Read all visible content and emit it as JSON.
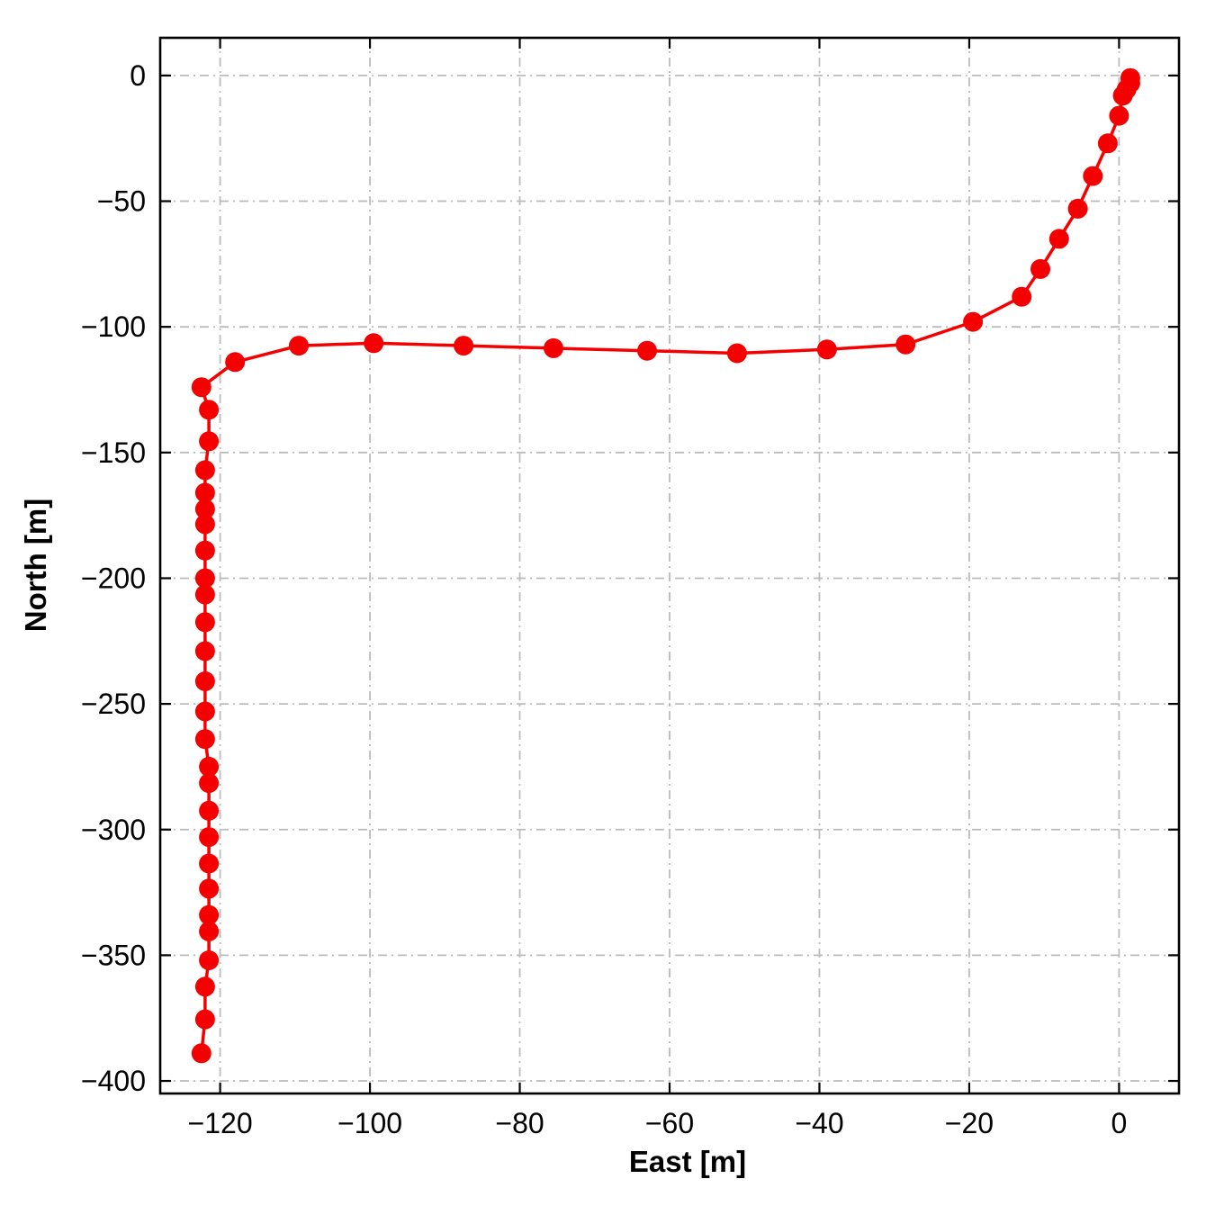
{
  "chart_data": {
    "type": "line",
    "title": "",
    "xlabel": "East [m]",
    "ylabel": "North [m]",
    "xlim": [
      -128,
      8
    ],
    "ylim": [
      -405,
      15
    ],
    "xticks": [
      -120,
      -100,
      -80,
      -60,
      -40,
      -20,
      0
    ],
    "yticks": [
      0,
      -50,
      -100,
      -150,
      -200,
      -250,
      -300,
      -350,
      -400
    ],
    "grid": true,
    "grid_style": "dash-dot",
    "legend": "none",
    "series_name": "trajectory",
    "marker": "circle",
    "marker_radius": 11,
    "colors": {
      "line": "#f40000",
      "marker": "#f40000",
      "grid": "#bbbbbb",
      "axes": "#000000"
    },
    "points": [
      [
        1.5,
        -1
      ],
      [
        1.5,
        -3
      ],
      [
        1.0,
        -5.5
      ],
      [
        0.5,
        -8
      ],
      [
        0.0,
        -16
      ],
      [
        -1.5,
        -27
      ],
      [
        -3.5,
        -40
      ],
      [
        -5.5,
        -53
      ],
      [
        -8.0,
        -65
      ],
      [
        -10.5,
        -77
      ],
      [
        -13.0,
        -88
      ],
      [
        -19.5,
        -98
      ],
      [
        -28.5,
        -107
      ],
      [
        -39.0,
        -109
      ],
      [
        -51.0,
        -110.5
      ],
      [
        -63.0,
        -109.5
      ],
      [
        -75.5,
        -108.5
      ],
      [
        -87.5,
        -107.5
      ],
      [
        -99.5,
        -106.5
      ],
      [
        -109.5,
        -107.5
      ],
      [
        -118.0,
        -114
      ],
      [
        -122.5,
        -124
      ],
      [
        -121.5,
        -133
      ],
      [
        -121.5,
        -145.5
      ],
      [
        -122.0,
        -157
      ],
      [
        -122.0,
        -166
      ],
      [
        -122.0,
        -172.5
      ],
      [
        -122.0,
        -178.5
      ],
      [
        -122.0,
        -189
      ],
      [
        -122.0,
        -200
      ],
      [
        -122.0,
        -206.5
      ],
      [
        -122.0,
        -217.5
      ],
      [
        -122.0,
        -229
      ],
      [
        -122.0,
        -241
      ],
      [
        -122.0,
        -253
      ],
      [
        -122.0,
        -264
      ],
      [
        -121.5,
        -275
      ],
      [
        -121.5,
        -281.5
      ],
      [
        -121.5,
        -292.5
      ],
      [
        -121.5,
        -303
      ],
      [
        -121.5,
        -313.5
      ],
      [
        -121.5,
        -323.5
      ],
      [
        -121.5,
        -334
      ],
      [
        -121.5,
        -340.5
      ],
      [
        -121.5,
        -352
      ],
      [
        -122.0,
        -362.5
      ],
      [
        -122.0,
        -375.5
      ],
      [
        -122.5,
        -389
      ]
    ]
  }
}
